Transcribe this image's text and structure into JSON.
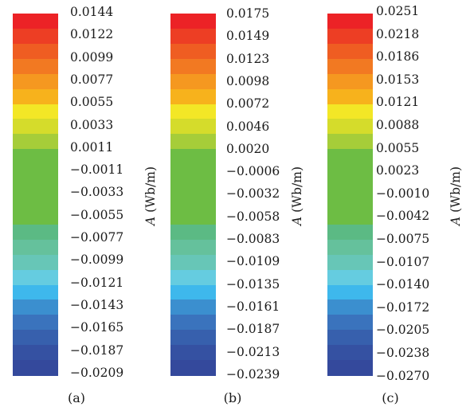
{
  "colors": [
    "#ec2226",
    "#ed3e24",
    "#ef5d22",
    "#f27922",
    "#f59820",
    "#f7b21c",
    "#f3e726",
    "#d5dc2b",
    "#a6cd39",
    "#6dbd44",
    "#6dbd44",
    "#6dbd44",
    "#6dbd44",
    "#6dbd44",
    "#5bba84",
    "#65c19c",
    "#67c6b7",
    "#65cce0",
    "#3eb8ec",
    "#3b8fcf",
    "#3a73bd",
    "#3760ad",
    "#3551a2",
    "#34499c"
  ],
  "unit_symbol": "A",
  "unit_text": " (Wb/m)",
  "colorbars": [
    {
      "caption": "(a)",
      "ticks": [
        "0.0144",
        "0.0122",
        "0.0099",
        "0.0077",
        "0.0055",
        "0.0033",
        "0.0011",
        "−0.0011",
        "−0.0033",
        "−0.0055",
        "−0.0077",
        "−0.0099",
        "−0.0121",
        "−0.0143",
        "−0.0165",
        "−0.0187",
        "−0.0209"
      ]
    },
    {
      "caption": "(b)",
      "ticks": [
        "0.0175",
        "0.0149",
        "0.0123",
        "0.0098",
        "0.0072",
        "0.0046",
        "0.0020",
        "−0.0006",
        "−0.0032",
        "−0.0058",
        "−0.0083",
        "−0.0109",
        "−0.0135",
        "−0.0161",
        "−0.0187",
        "−0.0213",
        "−0.0239"
      ]
    },
    {
      "caption": "(c)",
      "ticks": [
        "0.0251",
        "0.0218",
        "0.0186",
        "0.0153",
        "0.0121",
        "0.0088",
        "0.0055",
        "0.0023",
        "−0.0010",
        "−0.0042",
        "−0.0075",
        "−0.0107",
        "−0.0140",
        "−0.0172",
        "−0.0205",
        "−0.0238",
        "−0.0270"
      ]
    }
  ]
}
